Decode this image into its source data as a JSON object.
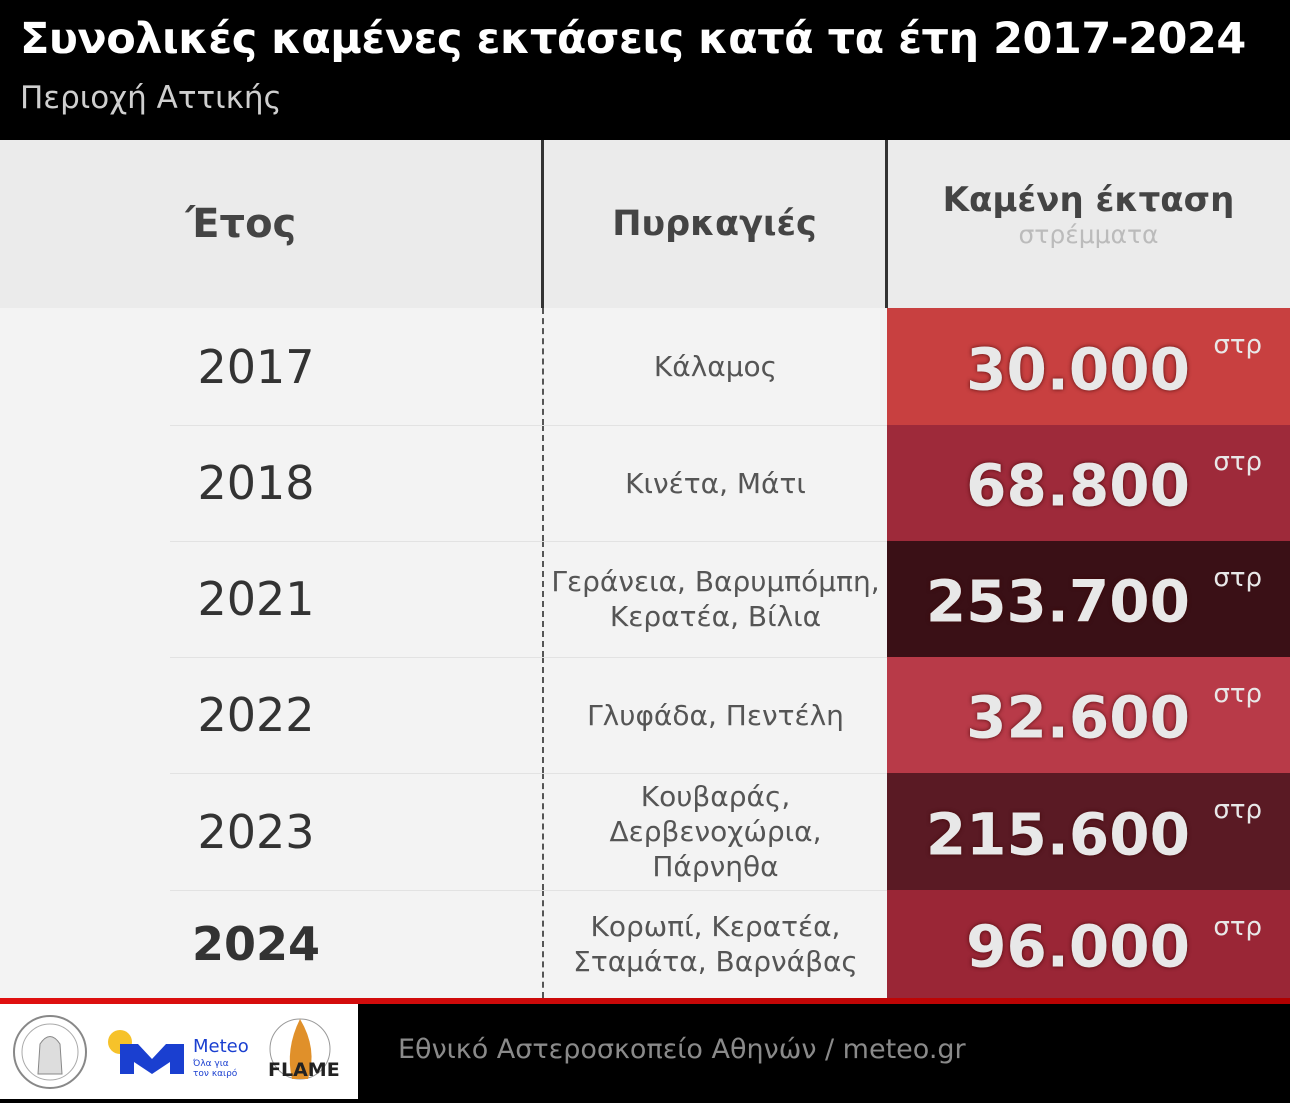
{
  "header": {
    "title": "Συνολικές καμένες εκτάσεις κατά τα έτη 2017-2024",
    "subtitle": "Περιοχή Αττικής"
  },
  "colors": {
    "row_colors": [
      "#c84040",
      "#9e2a3a",
      "#3a1016",
      "#b83a48",
      "#5a1a24",
      "#9a2636"
    ],
    "accent": "#e01010"
  },
  "chart_data": {
    "type": "table",
    "columns": [
      {
        "label": "Έτος"
      },
      {
        "label": "Πυρκαγιές"
      },
      {
        "label": "Καμένη έκταση",
        "sublabel": "στρέμματα"
      }
    ],
    "rows": [
      {
        "year": "2017",
        "fires": "Κάλαμος",
        "area": "30.000",
        "unit": "στρ"
      },
      {
        "year": "2018",
        "fires": "Κινέτα, Μάτι",
        "area": "68.800",
        "unit": "στρ"
      },
      {
        "year": "2021",
        "fires": "Γεράνεια, Βαρυμπόμπη, Κερατέα, Βίλια",
        "area": "253.700",
        "unit": "στρ"
      },
      {
        "year": "2022",
        "fires": "Γλυφάδα, Πεντέλη",
        "area": "32.600",
        "unit": "στρ"
      },
      {
        "year": "2023",
        "fires": "Κουβαράς, Δερβενοχώρια, Πάρνηθα",
        "area": "215.600",
        "unit": "στρ"
      },
      {
        "year": "2024",
        "fires": "Κορωπί, Κερατέα, Σταμάτα, Βαρνάβας",
        "area": "96.000",
        "unit": "στρ"
      }
    ]
  },
  "footer": {
    "source": "Εθνικό Αστεροσκοπείο Αθηνών / meteo.gr",
    "meteo_logo": "Meteo",
    "meteo_tagline": "Όλα για τον καιρό",
    "flame_logo": "FLAME"
  }
}
